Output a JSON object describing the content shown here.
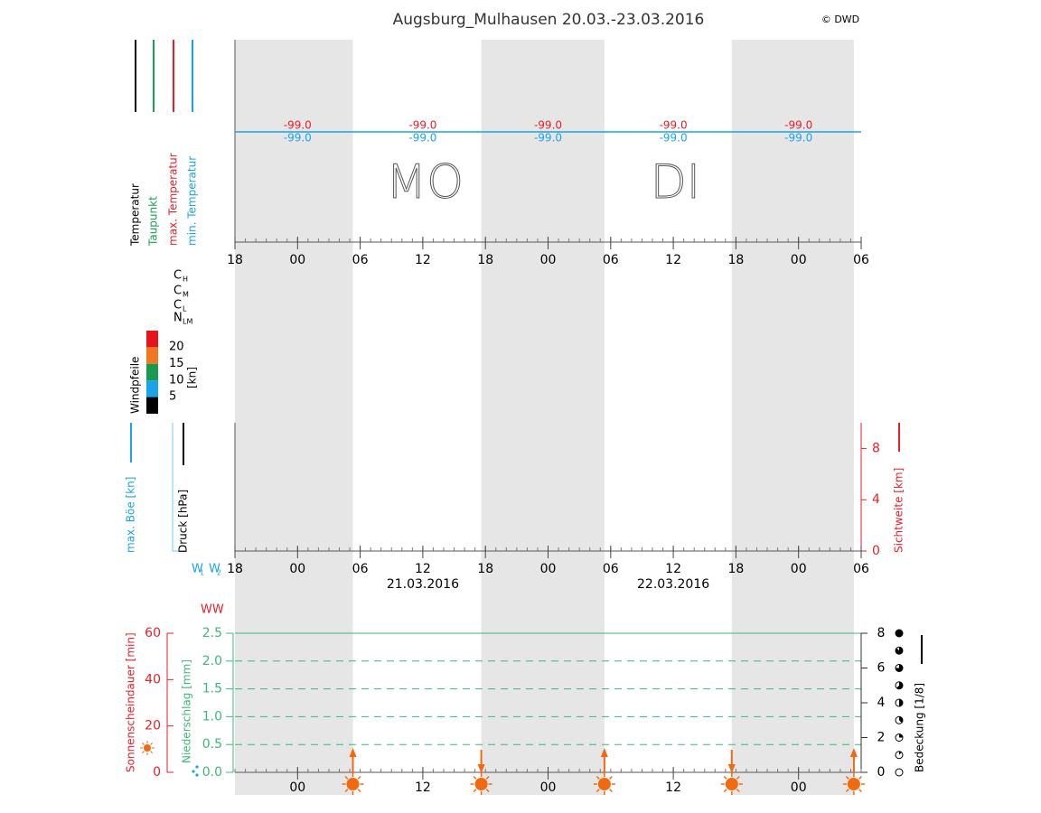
{
  "chart_data": {
    "type": "meteogram",
    "title": "Augsburg_Mulhausen 20.03.-23.03.2016",
    "credit": "© DWD",
    "xlim": [
      0,
      60
    ],
    "xtick_minor_step": 1,
    "sunrise": [
      11.3,
      35.4,
      59.3
    ],
    "sunset": [
      23.6,
      47.6
    ],
    "night_color": "#e6e6e6",
    "sun_color": "#f26a10",
    "panels": [
      {
        "type": "temperature",
        "series": [
          {
            "name": "Temperatur",
            "color": "#000000"
          },
          {
            "name": "Taupunkt",
            "color": "#1aa050"
          },
          {
            "name": "max. Temperatur",
            "color": "#e8202a",
            "x": [
              6,
              18,
              30,
              42,
              54
            ],
            "values": [
              -99.0,
              -99.0,
              -99.0,
              -99.0,
              -99.0
            ],
            "value_labels": [
              "-99.0",
              "-99.0",
              "-99.0",
              "-99.0",
              "-99.0"
            ]
          },
          {
            "name": "min. Temperatur",
            "color": "#1aa3e8",
            "x": [
              6,
              18,
              30,
              42,
              54
            ],
            "values": [
              -99.0,
              -99.0,
              -99.0,
              -99.0,
              -99.0
            ],
            "value_labels": [
              "-99.0",
              "-99.0",
              "-99.0",
              "-99.0",
              "-99.0"
            ]
          }
        ],
        "day_labels": [
          {
            "label": "MO",
            "x": 18.2
          },
          {
            "label": "DI",
            "x": 42.2
          }
        ],
        "xticks": [
          {
            "value": 0,
            "label": "18"
          },
          {
            "value": 6,
            "label": "00"
          },
          {
            "value": 12,
            "label": "06"
          },
          {
            "value": 18,
            "label": "12"
          },
          {
            "value": 24,
            "label": "18"
          },
          {
            "value": 30,
            "label": "00"
          },
          {
            "value": 36,
            "label": "06"
          },
          {
            "value": 42,
            "label": "12"
          },
          {
            "value": 48,
            "label": "18"
          },
          {
            "value": 54,
            "label": "00"
          },
          {
            "value": 60,
            "label": "06"
          }
        ]
      },
      {
        "type": "wind",
        "cloud_labels": [
          {
            "main": "C",
            "sub": "H"
          },
          {
            "main": "C",
            "sub": "M"
          },
          {
            "main": "C",
            "sub": "L"
          },
          {
            "main": "N",
            "sub": "LM"
          }
        ],
        "legend_title": "Windpfeile",
        "unit": "[kn]",
        "levels": [
          20,
          15,
          10,
          5
        ],
        "colors": [
          "#e8141c",
          "#f07820",
          "#1a9a50",
          "#1aa3e8",
          "#000000"
        ]
      },
      {
        "type": "pressure",
        "series": [
          {
            "name": "max. Böe [kn]",
            "color": "#1aa3e8"
          },
          {
            "name": "Druck [hPa]",
            "color": "#000000"
          },
          {
            "name": "Sichtweite [km]",
            "color": "#e8202a",
            "axis": "y2"
          }
        ],
        "y2lim": [
          0,
          10
        ],
        "y2ticks": [
          0,
          4,
          8
        ],
        "code_label": [
          {
            "main": "W",
            "sub": "1"
          },
          {
            "main": "W",
            "sub": "2"
          }
        ],
        "code_color": "#1aa3e8",
        "dates": [
          {
            "label": "21.03.2016",
            "x": 18
          },
          {
            "label": "22.03.2016",
            "x": 42
          }
        ],
        "xticks": [
          {
            "value": 0,
            "label": "18"
          },
          {
            "value": 6,
            "label": "00"
          },
          {
            "value": 12,
            "label": "06"
          },
          {
            "value": 18,
            "label": "12"
          },
          {
            "value": 24,
            "label": "18"
          },
          {
            "value": 30,
            "label": "00"
          },
          {
            "value": 36,
            "label": "06"
          },
          {
            "value": 42,
            "label": "12"
          },
          {
            "value": 48,
            "label": "18"
          },
          {
            "value": 54,
            "label": "00"
          },
          {
            "value": 60,
            "label": "06"
          }
        ]
      },
      {
        "type": "sunshine",
        "annotation": "WW",
        "series": [
          {
            "name": "Sonnenscheindauer [min]",
            "color": "#e8202a"
          },
          {
            "name": "Niederschlag [mm]",
            "color": "#3cb878"
          },
          {
            "name": "Bedeckung [1/8]",
            "color": "#000000"
          }
        ],
        "ylim": [
          0,
          60
        ],
        "yticks": [
          0,
          20,
          40,
          60
        ],
        "precip_lim": [
          0,
          2.5
        ],
        "precip_ticks": [
          {
            "value": 0,
            "label": "0.0"
          },
          0.5,
          {
            "value": 1,
            "label": "1.0"
          },
          1.5,
          {
            "value": 2,
            "label": "2.0"
          },
          2.5
        ],
        "y2lim": [
          0,
          8
        ],
        "y2ticks": [
          0,
          2,
          4,
          6,
          8
        ],
        "grid": true,
        "xticks": [
          {
            "value": 6,
            "label": "00"
          },
          {
            "value": 18,
            "label": "12"
          },
          {
            "value": 30,
            "label": "00"
          },
          {
            "value": 42,
            "label": "12"
          },
          {
            "value": 54,
            "label": "00"
          }
        ]
      }
    ]
  }
}
